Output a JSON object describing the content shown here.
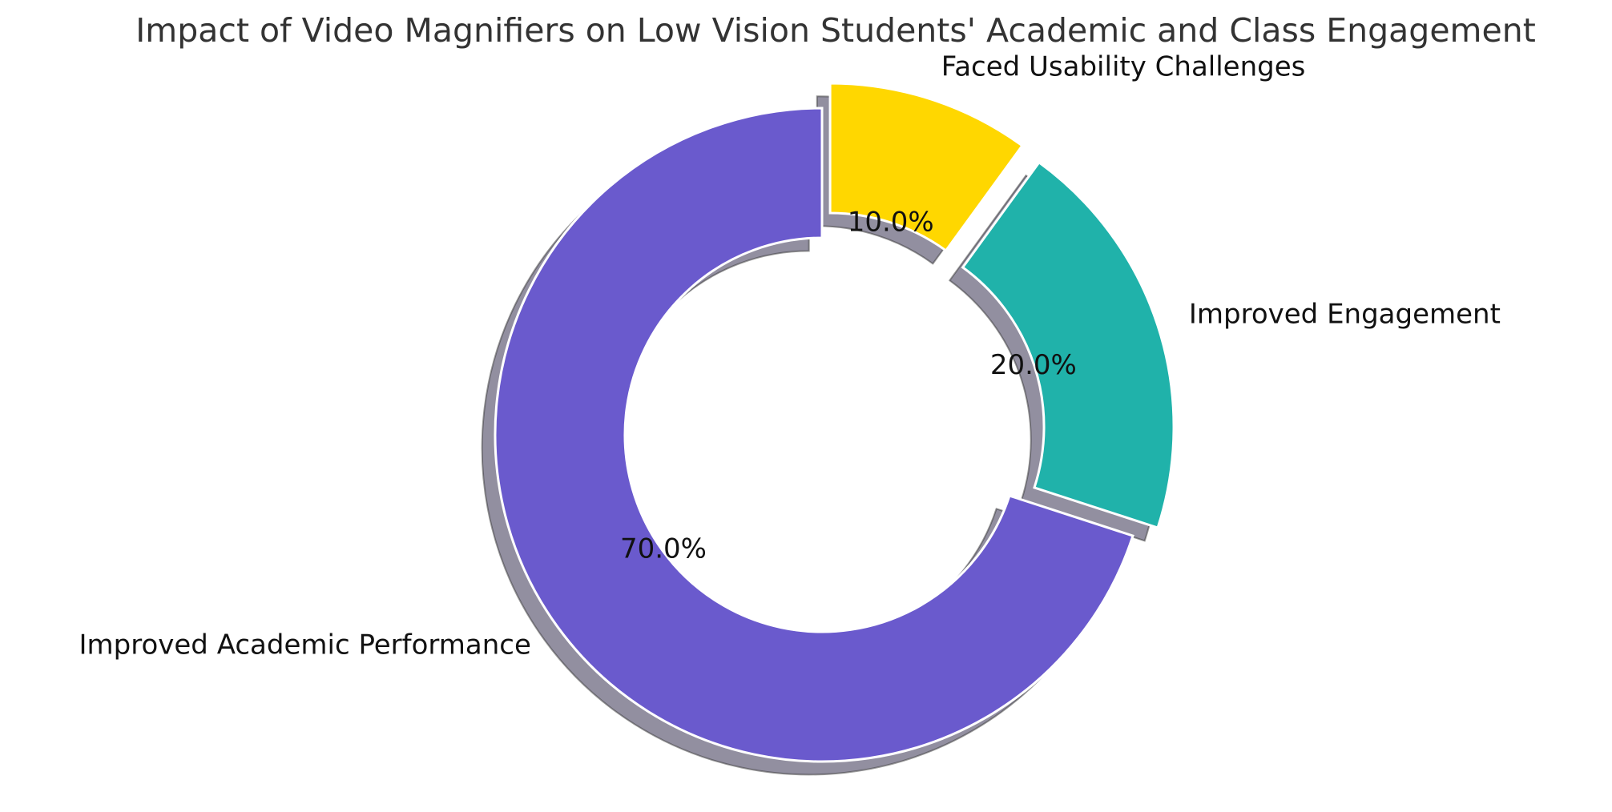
{
  "chart_data": {
    "type": "donut",
    "title": "Impact of Video Magnifiers on Low Vision Students' Academic and Class Engagement",
    "categories": [
      "Improved Academic Performance",
      "Improved Engagement",
      "Faced Usability Challenges"
    ],
    "values": [
      70,
      20,
      10
    ],
    "value_labels": [
      "70.0%",
      "20.0%",
      "10.0%"
    ],
    "colors": [
      "#6a5acd",
      "#20b2aa",
      "#ffd700"
    ],
    "explode": [
      0,
      0.08,
      0.08
    ],
    "shadow": true
  }
}
